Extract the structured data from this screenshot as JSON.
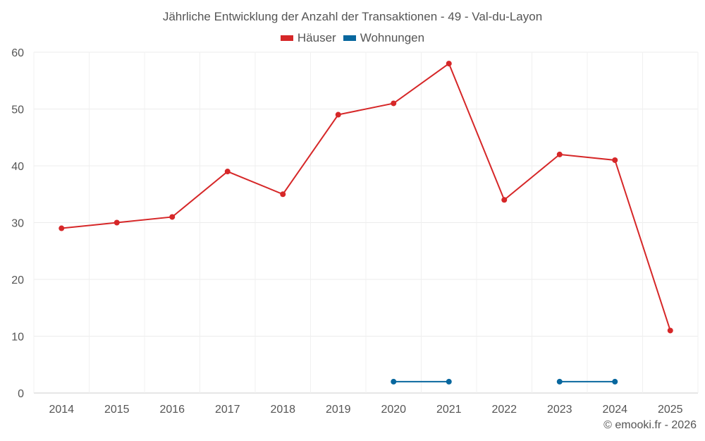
{
  "chart_data": {
    "type": "line",
    "title": "Jährliche Entwicklung der Anzahl der Transaktionen - 49 - Val-du-Layon",
    "categories": [
      "2014",
      "2015",
      "2016",
      "2017",
      "2018",
      "2019",
      "2020",
      "2021",
      "2022",
      "2023",
      "2024",
      "2025"
    ],
    "series": [
      {
        "name": "Häuser",
        "color": "#d62728",
        "values": [
          29,
          30,
          31,
          39,
          35,
          49,
          51,
          58,
          34,
          42,
          41,
          11
        ]
      },
      {
        "name": "Wohnungen",
        "color": "#08679e",
        "values": [
          null,
          null,
          null,
          null,
          null,
          null,
          2,
          2,
          null,
          2,
          2,
          null
        ]
      }
    ],
    "yticks": [
      0,
      10,
      20,
      30,
      40,
      50,
      60
    ],
    "ylim": [
      0,
      60
    ],
    "xlabel": "",
    "ylabel": "",
    "grid": true,
    "legend": "top-center"
  },
  "credit": "© emooki.fr - 2026"
}
